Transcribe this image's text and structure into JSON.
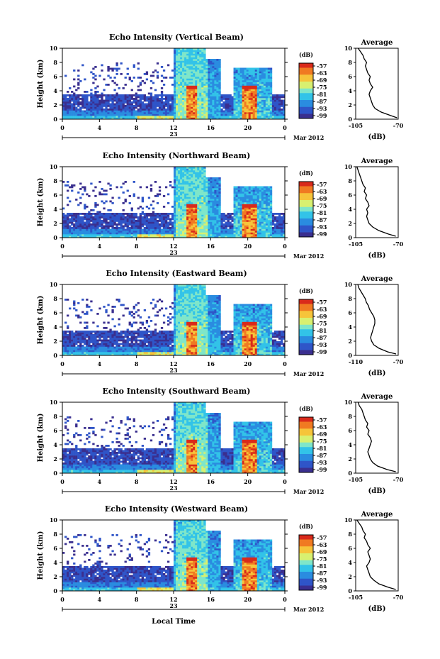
{
  "chart_data": [
    {
      "type": "heatmap",
      "title": "Echo Intensity (Vertical Beam)",
      "ylabel": "Height (km)",
      "ylim": [
        0,
        10
      ],
      "yticks": [
        "0",
        "2",
        "4",
        "6",
        "8",
        "10"
      ],
      "xticks": [
        "0",
        "4",
        "8",
        "12",
        "16",
        "20",
        "0"
      ],
      "date_label": "23",
      "month_label": "Mar 2012",
      "colorbar_unit": "(dB)",
      "colorbar_ticks": [
        "-57",
        "-63",
        "-69",
        "-75",
        "-81",
        "-87",
        "-93",
        "-99"
      ],
      "features": {
        "cloud_layer_km": [
          1.0,
          3.5
        ],
        "rain_periods_h": [
          [
            13.5,
            14.5
          ],
          [
            19.5,
            21.0
          ]
        ],
        "bright_band_km": 4.5,
        "upper_echo_km": 10
      },
      "profile": {
        "title": "Average",
        "xlabel": "(dB)",
        "xticks": [
          "-105",
          "-70"
        ],
        "xlim": [
          -105,
          -70
        ],
        "ylim": [
          0,
          10
        ],
        "yticks": [
          "0",
          "2",
          "4",
          "6",
          "8",
          "10"
        ],
        "heights": [
          0.2,
          0.5,
          1.0,
          1.5,
          2.0,
          2.5,
          3.0,
          3.5,
          4.0,
          4.5,
          5.0,
          5.5,
          6.0,
          6.5,
          7.0,
          7.5,
          8.0,
          8.5,
          9.0,
          9.5,
          10.0
        ],
        "values": [
          -71,
          -76,
          -84,
          -89,
          -91,
          -92,
          -93,
          -94,
          -93,
          -91,
          -93,
          -94,
          -93,
          -95,
          -96,
          -97,
          -96,
          -98,
          -99,
          -101,
          -103
        ]
      }
    },
    {
      "type": "heatmap",
      "title": "Echo Intensity (Northward Beam)",
      "ylabel": "Height (km)",
      "ylim": [
        0,
        10
      ],
      "yticks": [
        "0",
        "2",
        "4",
        "6",
        "8",
        "10"
      ],
      "xticks": [
        "0",
        "4",
        "8",
        "12",
        "16",
        "20",
        "0"
      ],
      "date_label": "23",
      "month_label": "Mar 2012",
      "colorbar_unit": "(dB)",
      "colorbar_ticks": [
        "-57",
        "-63",
        "-69",
        "-75",
        "-81",
        "-87",
        "-93",
        "-99"
      ],
      "features": {
        "cloud_layer_km": [
          1.0,
          3.5
        ],
        "rain_periods_h": [
          [
            13.5,
            14.5
          ],
          [
            19.5,
            21.0
          ]
        ],
        "bright_band_km": 4.5,
        "upper_echo_km": 10
      },
      "profile": {
        "title": "Average",
        "xlabel": "(dB)",
        "xticks": [
          "-105",
          "-70"
        ],
        "xlim": [
          -105,
          -70
        ],
        "ylim": [
          0,
          10
        ],
        "yticks": [
          "0",
          "2",
          "4",
          "6",
          "8",
          "10"
        ],
        "heights": [
          0.2,
          0.5,
          1.0,
          1.5,
          2.0,
          2.5,
          3.0,
          3.5,
          4.0,
          4.5,
          5.0,
          5.5,
          6.0,
          6.5,
          7.0,
          7.5,
          8.0,
          8.5,
          9.0,
          9.5,
          10.0
        ],
        "values": [
          -72,
          -78,
          -86,
          -91,
          -94,
          -95,
          -96,
          -95,
          -96,
          -94,
          -95,
          -97,
          -96,
          -98,
          -97,
          -99,
          -100,
          -101,
          -102,
          -103,
          -104
        ]
      }
    },
    {
      "type": "heatmap",
      "title": "Echo Intensity (Eastward Beam)",
      "ylabel": "Height (km)",
      "ylim": [
        0,
        10
      ],
      "yticks": [
        "0",
        "2",
        "4",
        "6",
        "8",
        "10"
      ],
      "xticks": [
        "0",
        "4",
        "8",
        "12",
        "16",
        "20",
        "0"
      ],
      "date_label": "23",
      "month_label": "Mar 2012",
      "colorbar_unit": "(dB)",
      "colorbar_ticks": [
        "-57",
        "-63",
        "-69",
        "-75",
        "-81",
        "-87",
        "-93",
        "-99"
      ],
      "features": {
        "cloud_layer_km": [
          1.0,
          3.5
        ],
        "rain_periods_h": [
          [
            13.5,
            14.5
          ],
          [
            19.5,
            21.0
          ]
        ],
        "bright_band_km": 4.5,
        "upper_echo_km": 10
      },
      "profile": {
        "title": "Average",
        "xlabel": "(dB)",
        "xticks": [
          "-110",
          "-70"
        ],
        "xlim": [
          -110,
          -70
        ],
        "ylim": [
          0,
          10
        ],
        "yticks": [
          "0",
          "2",
          "4",
          "6",
          "8",
          "10"
        ],
        "heights": [
          0.2,
          0.5,
          1.0,
          1.5,
          2.0,
          2.5,
          3.0,
          3.5,
          4.0,
          4.5,
          5.0,
          5.5,
          6.0,
          6.5,
          7.0,
          7.5,
          8.0,
          8.5,
          9.0,
          9.5,
          10.0
        ],
        "values": [
          -72,
          -80,
          -88,
          -93,
          -95,
          -96,
          -95,
          -94,
          -93,
          -92,
          -92,
          -93,
          -95,
          -97,
          -98,
          -100,
          -101,
          -103,
          -105,
          -107,
          -108
        ]
      }
    },
    {
      "type": "heatmap",
      "title": "Echo Intensity (Southward Beam)",
      "ylabel": "Height (km)",
      "ylim": [
        0,
        10
      ],
      "yticks": [
        "0",
        "2",
        "4",
        "6",
        "8",
        "10"
      ],
      "xticks": [
        "0",
        "4",
        "8",
        "12",
        "16",
        "20",
        "0"
      ],
      "date_label": "23",
      "month_label": "Mar 2012",
      "colorbar_unit": "(dB)",
      "colorbar_ticks": [
        "-57",
        "-63",
        "-69",
        "-75",
        "-81",
        "-87",
        "-93",
        "-99"
      ],
      "features": {
        "cloud_layer_km": [
          1.0,
          3.5
        ],
        "rain_periods_h": [
          [
            13.5,
            14.5
          ],
          [
            19.5,
            21.0
          ]
        ],
        "bright_band_km": 4.5,
        "upper_echo_km": 10
      },
      "profile": {
        "title": "Average",
        "xlabel": "(dB)",
        "xticks": [
          "-105",
          "-70"
        ],
        "xlim": [
          -105,
          -70
        ],
        "ylim": [
          0,
          10
        ],
        "yticks": [
          "0",
          "2",
          "4",
          "6",
          "8",
          "10"
        ],
        "heights": [
          0.2,
          0.5,
          1.0,
          1.5,
          2.0,
          2.5,
          3.0,
          3.5,
          4.0,
          4.5,
          5.0,
          5.5,
          6.0,
          6.5,
          7.0,
          7.5,
          8.0,
          8.5,
          9.0,
          9.5,
          10.0
        ],
        "values": [
          -72,
          -79,
          -87,
          -91,
          -93,
          -94,
          -95,
          -94,
          -93,
          -92,
          -93,
          -95,
          -94,
          -96,
          -95,
          -97,
          -98,
          -99,
          -100,
          -102,
          -103
        ]
      }
    },
    {
      "type": "heatmap",
      "title": "Echo Intensity (Westward Beam)",
      "ylabel": "Height (km)",
      "ylim": [
        0,
        10
      ],
      "yticks": [
        "0",
        "2",
        "4",
        "6",
        "8",
        "10"
      ],
      "xticks": [
        "0",
        "4",
        "8",
        "12",
        "16",
        "20",
        "0"
      ],
      "date_label": "23",
      "month_label": "Mar 2012",
      "colorbar_unit": "(dB)",
      "colorbar_ticks": [
        "-57",
        "-63",
        "-69",
        "-75",
        "-81",
        "-87",
        "-93",
        "-99"
      ],
      "xlabel": "Local Time",
      "features": {
        "cloud_layer_km": [
          1.0,
          3.5
        ],
        "rain_periods_h": [
          [
            13.5,
            14.5
          ],
          [
            19.5,
            21.0
          ]
        ],
        "bright_band_km": 4.5,
        "upper_echo_km": 10
      },
      "profile": {
        "title": "Average",
        "xlabel": "(dB)",
        "xticks": [
          "-105",
          "-70"
        ],
        "xlim": [
          -105,
          -70
        ],
        "ylim": [
          0,
          10
        ],
        "yticks": [
          "0",
          "2",
          "4",
          "6",
          "8",
          "10"
        ],
        "heights": [
          0.2,
          0.5,
          1.0,
          1.5,
          2.0,
          2.5,
          3.0,
          3.5,
          4.0,
          4.5,
          5.0,
          5.5,
          6.0,
          6.5,
          7.0,
          7.5,
          8.0,
          8.5,
          9.0,
          9.5,
          10.0
        ],
        "values": [
          -72,
          -78,
          -86,
          -90,
          -93,
          -94,
          -95,
          -96,
          -94,
          -93,
          -94,
          -95,
          -93,
          -95,
          -96,
          -98,
          -97,
          -99,
          -100,
          -102,
          -104
        ]
      }
    }
  ],
  "colors": {
    "colormap": [
      "#3a2f8f",
      "#2f55c8",
      "#2a8ce0",
      "#32c3e8",
      "#7fe6c9",
      "#d8f070",
      "#f6c43a",
      "#f07a22",
      "#d92a1b"
    ],
    "axis": "#000000"
  }
}
